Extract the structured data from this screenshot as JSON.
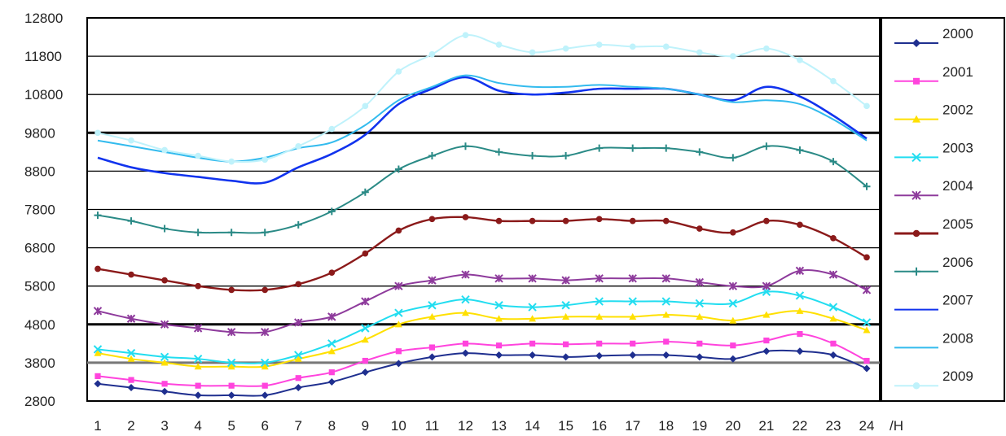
{
  "chart_data": {
    "type": "line",
    "title": "",
    "xlabel": "/H",
    "ylabel": "",
    "x": [
      1,
      2,
      3,
      4,
      5,
      6,
      7,
      8,
      9,
      10,
      11,
      12,
      13,
      14,
      15,
      16,
      17,
      18,
      19,
      20,
      21,
      22,
      23,
      24
    ],
    "ylim": [
      2800,
      12800
    ],
    "yticks": [
      2800,
      3800,
      4800,
      5800,
      6800,
      7800,
      8800,
      9800,
      10800,
      11800,
      12800
    ],
    "grid": "horizontal",
    "legend_position": "right",
    "series": [
      {
        "name": "2000",
        "color": "#1f2f8f",
        "marker": "diamond",
        "values": [
          3250,
          3150,
          3050,
          2950,
          2950,
          2950,
          3150,
          3300,
          3550,
          3780,
          3950,
          4050,
          4000,
          4000,
          3950,
          3980,
          4000,
          4000,
          3950,
          3900,
          4100,
          4100,
          4000,
          3650
        ]
      },
      {
        "name": "2001",
        "color": "#ff44dd",
        "marker": "square",
        "values": [
          3450,
          3350,
          3250,
          3200,
          3200,
          3200,
          3400,
          3550,
          3850,
          4100,
          4200,
          4300,
          4250,
          4300,
          4280,
          4300,
          4300,
          4350,
          4300,
          4250,
          4380,
          4550,
          4300,
          3850
        ]
      },
      {
        "name": "2002",
        "color": "#ffe000",
        "marker": "triangle",
        "values": [
          4050,
          3900,
          3800,
          3700,
          3700,
          3700,
          3900,
          4100,
          4400,
          4800,
          5000,
          5100,
          4950,
          4950,
          5000,
          5000,
          5000,
          5050,
          5000,
          4900,
          5050,
          5150,
          4950,
          4650
        ]
      },
      {
        "name": "2003",
        "color": "#22ddf0",
        "marker": "x",
        "values": [
          4150,
          4050,
          3950,
          3900,
          3800,
          3800,
          4000,
          4300,
          4700,
          5100,
          5300,
          5450,
          5300,
          5250,
          5300,
          5400,
          5400,
          5400,
          5350,
          5350,
          5650,
          5550,
          5250,
          4850
        ]
      },
      {
        "name": "2004",
        "color": "#8e3b9c",
        "marker": "star",
        "values": [
          5150,
          4950,
          4800,
          4700,
          4600,
          4600,
          4850,
          5000,
          5400,
          5800,
          5950,
          6100,
          6000,
          6000,
          5950,
          6000,
          6000,
          6000,
          5900,
          5800,
          5800,
          6200,
          6100,
          5700
        ]
      },
      {
        "name": "2005",
        "color": "#8b1a1a",
        "marker": "circle",
        "values": [
          6250,
          6100,
          5950,
          5800,
          5700,
          5700,
          5850,
          6150,
          6650,
          7250,
          7550,
          7600,
          7500,
          7500,
          7500,
          7550,
          7500,
          7500,
          7300,
          7200,
          7500,
          7400,
          7050,
          6550
        ]
      },
      {
        "name": "2006",
        "color": "#2a8a86",
        "marker": "plus",
        "values": [
          7650,
          7500,
          7300,
          7200,
          7200,
          7200,
          7400,
          7750,
          8250,
          8850,
          9200,
          9450,
          9300,
          9200,
          9200,
          9400,
          9400,
          9400,
          9300,
          9150,
          9450,
          9350,
          9050,
          8400
        ]
      },
      {
        "name": "2007",
        "color": "#1133ee",
        "marker": "line",
        "values": [
          9150,
          8900,
          8750,
          8650,
          8550,
          8500,
          8900,
          9250,
          9750,
          10550,
          10950,
          11250,
          10900,
          10800,
          10850,
          10950,
          10950,
          10950,
          10800,
          10650,
          11000,
          10750,
          10250,
          9650
        ]
      },
      {
        "name": "2008",
        "color": "#33bbee",
        "marker": "line",
        "values": [
          9600,
          9450,
          9300,
          9150,
          9050,
          9150,
          9400,
          9550,
          10000,
          10650,
          11000,
          11300,
          11100,
          11000,
          11000,
          11050,
          11000,
          10950,
          10800,
          10600,
          10650,
          10550,
          10150,
          9600
        ]
      },
      {
        "name": "2009",
        "color": "#bff2fb",
        "marker": "circle",
        "values": [
          9800,
          9600,
          9350,
          9200,
          9050,
          9100,
          9450,
          9900,
          10500,
          11400,
          11850,
          12350,
          12100,
          11900,
          12000,
          12100,
          12050,
          12050,
          11900,
          11800,
          12000,
          11700,
          11150,
          10500
        ]
      }
    ]
  }
}
